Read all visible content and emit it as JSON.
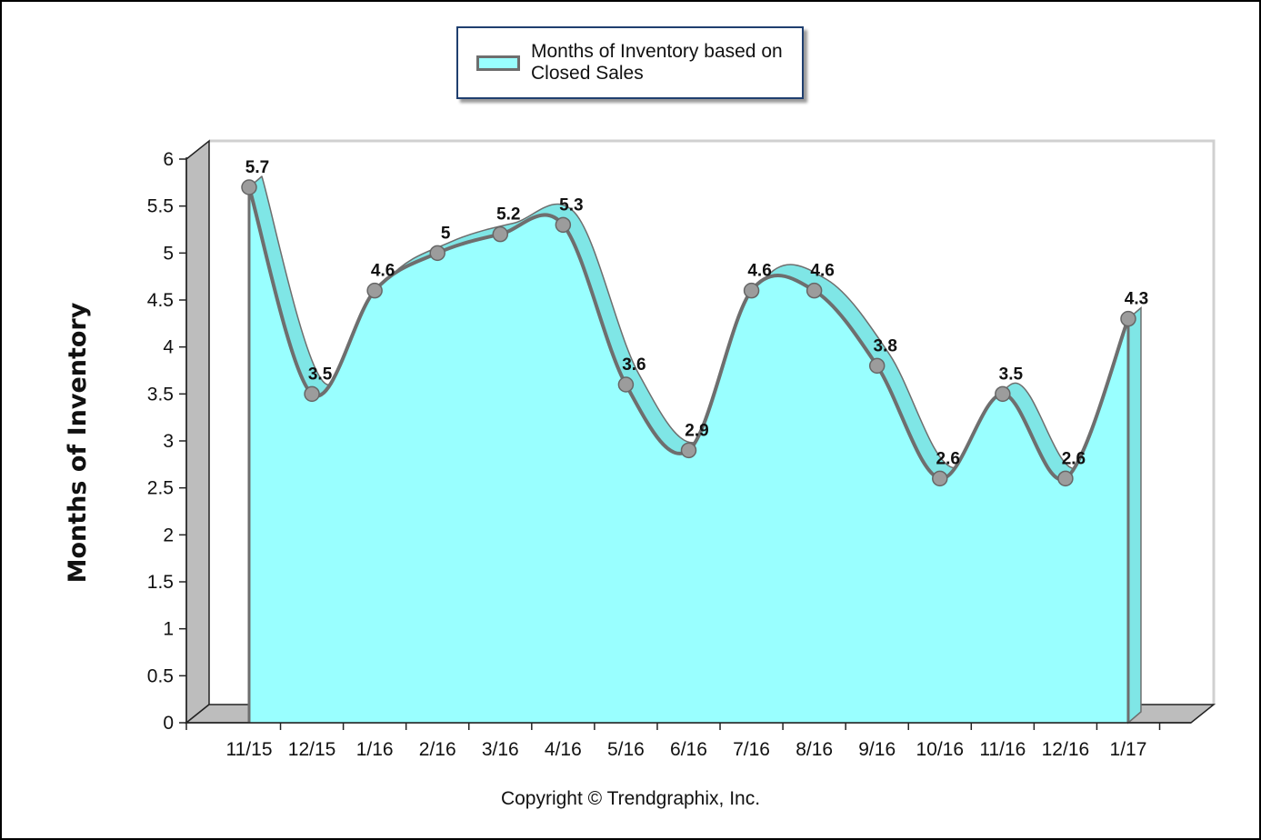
{
  "legend": {
    "label": "Months of Inventory based on Closed Sales"
  },
  "copyright": "Copyright © Trendgraphix, Inc.",
  "chart_data": {
    "type": "area",
    "title": "",
    "xlabel": "",
    "ylabel": "Months of Inventory",
    "ylim": [
      0,
      6
    ],
    "yticks": [
      "0",
      "0.5",
      "1",
      "1.5",
      "2",
      "2.5",
      "3",
      "3.5",
      "4",
      "4.5",
      "5",
      "5.5",
      "6"
    ],
    "categories": [
      "11/15",
      "12/15",
      "1/16",
      "2/16",
      "3/16",
      "4/16",
      "5/16",
      "6/16",
      "7/16",
      "8/16",
      "9/16",
      "10/16",
      "11/16",
      "12/16",
      "1/17"
    ],
    "series": [
      {
        "name": "Months of Inventory based on Closed Sales",
        "values": [
          5.7,
          3.5,
          4.6,
          5,
          5.2,
          5.3,
          3.6,
          2.9,
          4.6,
          4.6,
          3.8,
          2.6,
          3.5,
          2.6,
          4.3
        ],
        "data_labels": [
          "5.7",
          "3.5",
          "4.6",
          "5",
          "5.2",
          "5.3",
          "3.6",
          "2.9",
          "4.6",
          "4.6",
          "3.8",
          "2.6",
          "3.5",
          "2.6",
          "4.3"
        ]
      }
    ],
    "grid": false,
    "legend_position": "top-center",
    "colors": {
      "area_fill": "#99ffff",
      "ribbon_fill": "#7fe6e6",
      "line": "#6e6e6e",
      "marker": "#9c9c9c",
      "wall": "#bdbdbd",
      "wall_border": "#d0d0d0"
    }
  }
}
